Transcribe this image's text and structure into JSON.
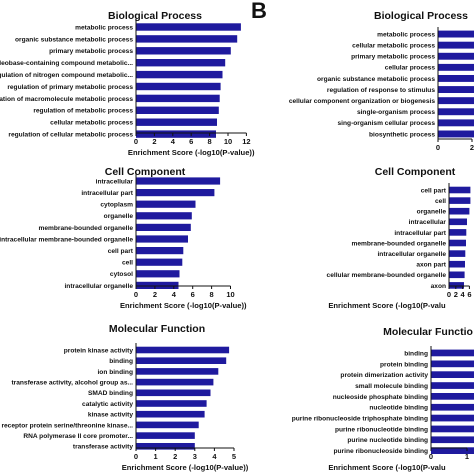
{
  "panel_letter": "B",
  "colors": {
    "bar": "#1f1a9e",
    "axis": "#111111"
  },
  "chart_data": [
    {
      "type": "bar",
      "orientation": "horizontal",
      "title": "Biological Process",
      "xlabel": "Enrichment Score (-log10(P-value))",
      "xlim": [
        0,
        12
      ],
      "xticks": [
        0,
        2,
        4,
        6,
        8,
        10,
        12
      ],
      "categories": [
        "metabolic process",
        "organic substance metabolic process",
        "primary metabolic process",
        "nucleobase-containing compound metabolic...",
        "regulation of nitrogen compound metabolic...",
        "regulation of primary metabolic process",
        "regulation of macromolecule metabolic process",
        "regulation of metabolic process",
        "cellular metabolic process",
        "regulation of cellular metabolic process"
      ],
      "values": [
        11.4,
        11.0,
        10.3,
        9.7,
        9.4,
        9.2,
        9.1,
        9.0,
        8.8,
        8.7
      ]
    },
    {
      "type": "bar",
      "orientation": "horizontal",
      "title": "Cell Component",
      "xlabel": "Enrichment Score (-log10(P-value))",
      "xlim": [
        0,
        10
      ],
      "xticks": [
        0,
        2,
        4,
        6,
        8,
        10
      ],
      "categories": [
        "intracellular",
        "intracellular part",
        "cytoplasm",
        "organelle",
        "membrane-bounded organelle",
        "intracellular membrane-bounded organelle",
        "cell part",
        "cell",
        "cytosol",
        "intracellular organelle"
      ],
      "values": [
        8.9,
        8.3,
        6.3,
        5.9,
        5.8,
        5.5,
        5.0,
        4.9,
        4.6,
        4.5
      ]
    },
    {
      "type": "bar",
      "orientation": "horizontal",
      "title": "Molecular Function",
      "xlabel": "Enrichment Score (-log10(P-value))",
      "xlim": [
        0,
        5
      ],
      "xticks": [
        0,
        1,
        2,
        3,
        4,
        5
      ],
      "categories": [
        "protein kinase activity",
        "binding",
        "ion binding",
        "transferase activity, alcohol group as...",
        "SMAD binding",
        "catalytic activity",
        "kinase activity",
        "receptor protein serine/threonine kinase...",
        "RNA polymerase II core promoter...",
        "transferase activity"
      ],
      "values": [
        4.75,
        4.6,
        4.2,
        3.95,
        3.8,
        3.6,
        3.5,
        3.2,
        3.0,
        3.0
      ]
    },
    {
      "type": "bar",
      "orientation": "horizontal",
      "title": "Biological Process",
      "xlabel": "",
      "xticks": [
        0,
        2
      ],
      "categories": [
        "metabolic process",
        "cellular metabolic process",
        "primary metabolic process",
        "cellular process",
        "organic substance metabolic process",
        "regulation of response to stimulus",
        "cellular component organization or biogenesis",
        "single-organism process",
        "sing-organism cellular process",
        "biosynthetic process"
      ],
      "values": [
        9.5,
        9.3,
        9.1,
        9.0,
        8.9,
        8.7,
        8.6,
        8.5,
        8.5,
        8.4
      ]
    },
    {
      "type": "bar",
      "orientation": "horizontal",
      "title": "Cell Component",
      "xlabel": "Enrichment Score (-log10(P-valu",
      "xticks": [
        0,
        2,
        4,
        6
      ],
      "categories": [
        "cell part",
        "cell",
        "organelle",
        "intracellular",
        "intracellular part",
        "membrane-bounded organelle",
        "intracellular organelle",
        "axon part",
        "cellular membrane-bounded organelle",
        "axon"
      ],
      "values": [
        6.3,
        6.3,
        6.0,
        5.3,
        5.1,
        5.0,
        4.8,
        4.7,
        4.6,
        4.4
      ]
    },
    {
      "type": "bar",
      "orientation": "horizontal",
      "title": "Molecular Functio",
      "xlabel": "Enrichment Score (-log10(P-valu",
      "xticks": [
        0,
        1
      ],
      "categories": [
        "binding",
        "protein binding",
        "protein dimerization activity",
        "small molecule binding",
        "nucleoside phosphate binding",
        "nucleotide binding",
        "purine ribonucleoside triphosphate binding",
        "purine ribonucleotide binding",
        "purine nucleotide binding",
        "purine ribonucleoside binding"
      ],
      "values": [
        3.0,
        3.0,
        3.0,
        3.0,
        3.0,
        3.0,
        3.0,
        3.0,
        3.0,
        3.0
      ]
    }
  ]
}
